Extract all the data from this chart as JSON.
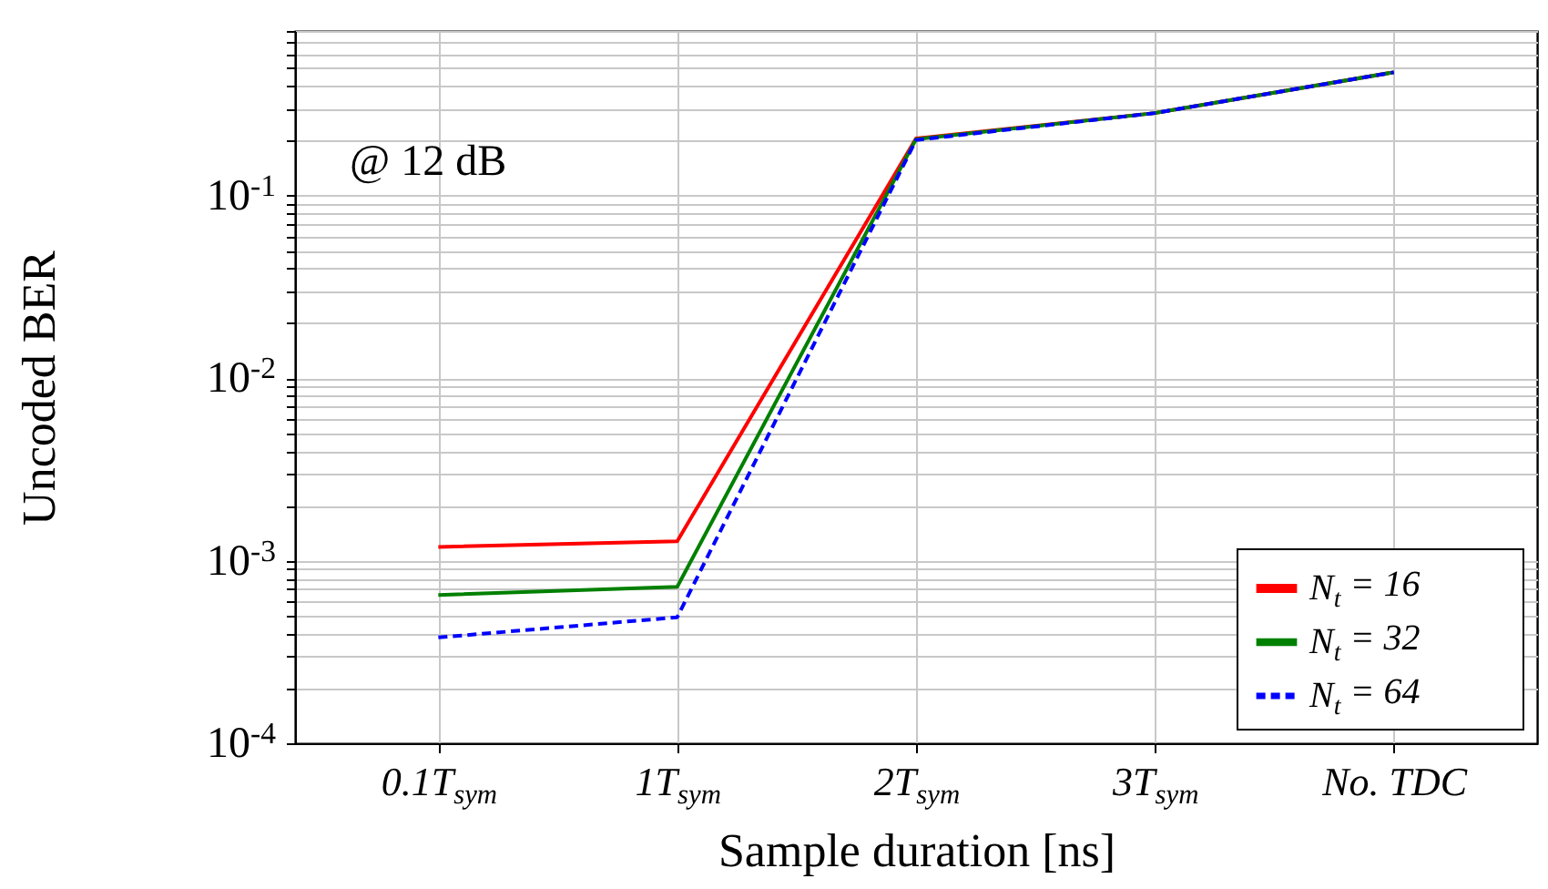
{
  "chart_data": {
    "type": "line",
    "xlabel": "Sample duration [ns]",
    "ylabel": "Uncoded BER",
    "annotations": [
      "@ 12 dB"
    ],
    "categories": [
      "0.1T$_{sym}$",
      "1T$_{sym}$",
      "2T$_{sym}$",
      "3T$_{sym}$",
      "No. TDC"
    ],
    "series": [
      {
        "name": "N$_{t}$ = 16",
        "color": "#ff0000",
        "line_style": "solid",
        "values": [
          0.00119,
          0.00128,
          0.206,
          0.284,
          0.475
        ]
      },
      {
        "name": "N$_{t}$ = 32",
        "color": "#008000",
        "line_style": "solid",
        "values": [
          0.00065,
          0.00072,
          0.204,
          0.284,
          0.475
        ]
      },
      {
        "name": "N$_{t}$ = 64",
        "color": "#0000ff",
        "line_style": "dashed",
        "values": [
          0.00038,
          0.00049,
          0.202,
          0.284,
          0.475
        ]
      }
    ],
    "log": "y",
    "ylim": [
      0.0001,
      0.8
    ],
    "yticks": [
      {
        "value": 0.0001,
        "label": "10$^{-4}$"
      },
      {
        "value": 0.0002,
        "label": null
      },
      {
        "value": 0.0003,
        "label": null
      },
      {
        "value": 0.0004,
        "label": null
      },
      {
        "value": 0.0005,
        "label": null
      },
      {
        "value": 0.0006,
        "label": null
      },
      {
        "value": 0.0007,
        "label": null
      },
      {
        "value": 0.0008,
        "label": null
      },
      {
        "value": 0.0009,
        "label": null
      },
      {
        "value": 0.001,
        "label": "10$^{-3}$"
      },
      {
        "value": 0.002,
        "label": null
      },
      {
        "value": 0.003,
        "label": null
      },
      {
        "value": 0.004,
        "label": null
      },
      {
        "value": 0.005,
        "label": null
      },
      {
        "value": 0.006,
        "label": null
      },
      {
        "value": 0.007,
        "label": null
      },
      {
        "value": 0.008,
        "label": null
      },
      {
        "value": 0.009,
        "label": null
      },
      {
        "value": 0.01,
        "label": "10$^{-2}$"
      },
      {
        "value": 0.02,
        "label": null
      },
      {
        "value": 0.03,
        "label": null
      },
      {
        "value": 0.04,
        "label": null
      },
      {
        "value": 0.05,
        "label": null
      },
      {
        "value": 0.06,
        "label": null
      },
      {
        "value": 0.07,
        "label": null
      },
      {
        "value": 0.08,
        "label": null
      },
      {
        "value": 0.09,
        "label": null
      },
      {
        "value": 0.1,
        "label": "10$^{-1}$"
      },
      {
        "value": 0.2,
        "label": null
      },
      {
        "value": 0.3,
        "label": null
      },
      {
        "value": 0.4,
        "label": null
      },
      {
        "value": 0.5,
        "label": null
      },
      {
        "value": 0.6,
        "label": null
      },
      {
        "value": 0.7,
        "label": null
      },
      {
        "value": 0.8,
        "label": null
      }
    ],
    "grid": true,
    "legend": "bottom right"
  }
}
